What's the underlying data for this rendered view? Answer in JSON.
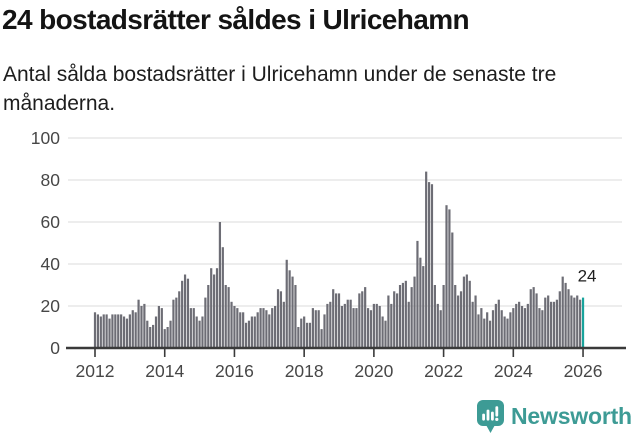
{
  "header": {
    "title": "24 bostadsrätter såldes i Ulricehamn",
    "subtitle": "Antal sålda bostadsrätter i Ulricehamn under de senaste tre månaderna."
  },
  "chart_data": {
    "type": "bar",
    "title": "24 bostadsrätter såldes i Ulricehamn",
    "subtitle": "Antal sålda bostadsrätter i Ulricehamn under de senaste tre månaderna.",
    "xlabel": "",
    "ylabel": "",
    "frequency": "monthly",
    "x_range": [
      "2012-01",
      "2026-01"
    ],
    "ylim": [
      0,
      100
    ],
    "grid": "horizontal",
    "legend": "none",
    "x_tick_labels": [
      "2012",
      "2014",
      "2016",
      "2018",
      "2020",
      "2022",
      "2024",
      "2026"
    ],
    "y_tick_labels": [
      0,
      20,
      40,
      60,
      80,
      100
    ],
    "values_by_year": {
      "2012": [
        17,
        16,
        15,
        16,
        16,
        14,
        16,
        16,
        16,
        16,
        15,
        14
      ],
      "2013": [
        16,
        18,
        17,
        23,
        20,
        21,
        13,
        10,
        11,
        15,
        20,
        19
      ],
      "2014": [
        9,
        10,
        13,
        23,
        24,
        27,
        32,
        35,
        33,
        19,
        19,
        15
      ],
      "2015": [
        13,
        15,
        24,
        30,
        38,
        35,
        38,
        60,
        48,
        30,
        29,
        22
      ],
      "2016": [
        20,
        19,
        17,
        17,
        12,
        13,
        15,
        15,
        17,
        19,
        19,
        18
      ],
      "2017": [
        16,
        19,
        20,
        28,
        27,
        22,
        42,
        37,
        34,
        30,
        10,
        14
      ],
      "2018": [
        15,
        12,
        12,
        19,
        18,
        18,
        9,
        16,
        21,
        22,
        28,
        26
      ],
      "2019": [
        26,
        20,
        21,
        23,
        23,
        19,
        19,
        26,
        27,
        29,
        19,
        18
      ],
      "2020": [
        21,
        21,
        20,
        15,
        13,
        25,
        21,
        27,
        26,
        30,
        31,
        32
      ],
      "2021": [
        22,
        29,
        34,
        51,
        43,
        39,
        84,
        79,
        78,
        30,
        21,
        18
      ],
      "2022": [
        30,
        68,
        66,
        55,
        30,
        25,
        27,
        34,
        35,
        32,
        22,
        25
      ],
      "2023": [
        16,
        19,
        14,
        17,
        13,
        18,
        21,
        23,
        18,
        15,
        14,
        17
      ],
      "2024": [
        19,
        21,
        22,
        20,
        19,
        21,
        28,
        29,
        26,
        19,
        18,
        24
      ],
      "2025": [
        25,
        22,
        22,
        23,
        27,
        34,
        31,
        28,
        25,
        24,
        25,
        23
      ],
      "2026": [
        24
      ]
    },
    "highlight": {
      "position": "last",
      "value": 24,
      "label": "24",
      "color": "#18a39c"
    },
    "bar_color": "#6d6d75",
    "axis_color": "#3a3a3a",
    "gridline_color": "#e2e2e2",
    "tick_label_color": "#474747"
  },
  "footer": {
    "brand": "Newsworthy",
    "brand_color": "#3d9b95"
  }
}
